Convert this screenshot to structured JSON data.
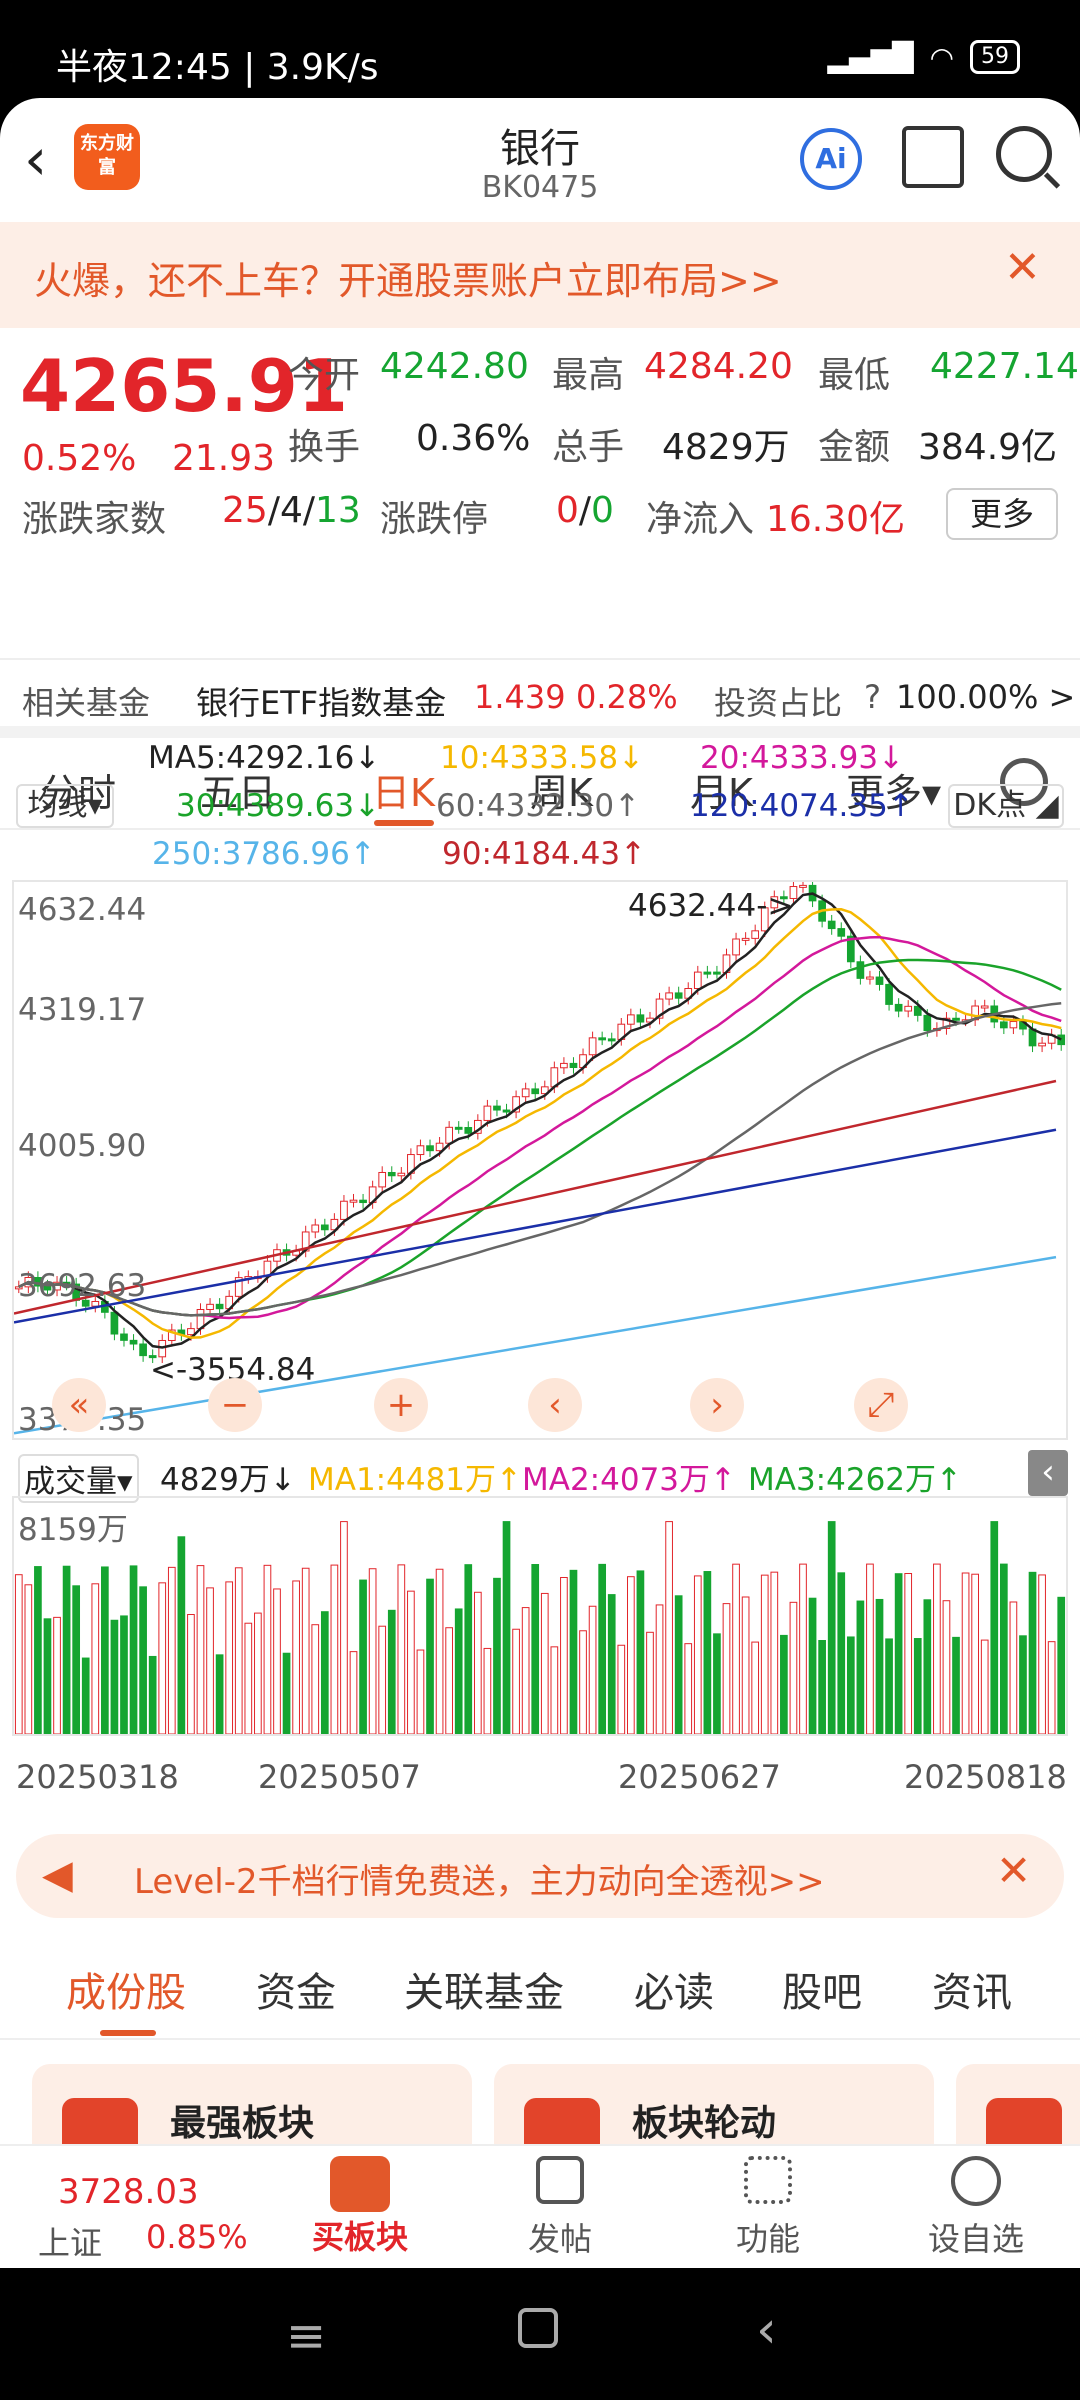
{
  "status": {
    "time": "半夜12:45 | 3.9K/s",
    "battery": "59",
    "net": "HD"
  },
  "nav": {
    "title": "银行",
    "code": "BK0475",
    "logo": "东方财富",
    "ai": "Ai"
  },
  "promo": {
    "text": "火爆，还不上车？开通股票账户立即布局>>"
  },
  "quote": {
    "price": "4265.91",
    "pct": "0.52%",
    "chg": "21.93",
    "open_label": "今开",
    "open": "4242.80",
    "high_label": "最高",
    "high": "4284.20",
    "low_label": "最低",
    "low": "4227.14",
    "turnover_label": "换手",
    "turnover": "0.36%",
    "vol_label": "总手",
    "vol": "4829万",
    "amt_label": "金额",
    "amt": "384.9亿",
    "count_label": "涨跌家数",
    "count_up": "25",
    "count_flat": "/4/",
    "count_down": "13",
    "limit_label": "涨跌停",
    "limit_up": "0",
    "limit_sep": "/",
    "limit_down": "0",
    "inflow_label": "净流入",
    "inflow": "16.30亿",
    "more": "更多"
  },
  "fund": {
    "label": "相关基金",
    "name": "银行ETF指数基金",
    "price": "1.439",
    "pct": "0.28%",
    "ratio_label": "投资占比",
    "ratio": "100.00% >"
  },
  "tabs": [
    "分时",
    "五日",
    "日K",
    "周K",
    "月K",
    "更多▾"
  ],
  "ma": {
    "toggle": "均线▾",
    "dk": "DK点 ◢",
    "ma5": "MA5:4292.16↓",
    "ma10": "10:4333.58↓",
    "ma20": "20:4333.93↓",
    "ma30": "30:4389.63↓",
    "ma60": "60:4332.30↑",
    "ma120": "120:4074.35↑",
    "ma250": "250:3786.96↑",
    "ma90": "90:4184.43↑"
  },
  "colors": {
    "ma5": "#222222",
    "ma10": "#f5b800",
    "ma20": "#d3189b",
    "ma30": "#1aa32a",
    "ma60": "#666666",
    "ma120": "#1b2fa8",
    "ma250": "#56b4e9",
    "ma90": "#c0272d"
  },
  "chart_labels": {
    "y_top": "4632.44",
    "y2": "4319.17",
    "y3": "4005.90",
    "y4": "3692.63",
    "y_bottom": "3379.35",
    "hi_note": "4632.44->",
    "lo_note": "<-3554.84"
  },
  "vol": {
    "label": "成交量▾",
    "cur": "4829万↓",
    "ma1": "MA1:4481万↑",
    "ma2": "MA2:4073万↑",
    "ma3": "MA3:4262万↑",
    "ymax": "8159万"
  },
  "dates": [
    "20250318",
    "20250507",
    "20250627",
    "20250818"
  ],
  "chart_data": {
    "type": "candlestick",
    "y_axis_ticks": [
      4632.44,
      4319.17,
      4005.9,
      3692.63,
      3379.35
    ],
    "y_range": [
      3379.35,
      4632.44
    ],
    "dates_shown": [
      "20250318",
      "20250507",
      "20250627",
      "20250818"
    ],
    "annotations": [
      {
        "text": "4632.44->",
        "value": 4632.44
      },
      {
        "text": "<-3554.84",
        "value": 3554.84
      }
    ],
    "volume_y_label": "8159万"
  },
  "l2": {
    "text": "Level-2千档行情免费送，主力动向全透视>>"
  },
  "subtabs": [
    "成份股",
    "资金",
    "关联基金",
    "必读",
    "股吧",
    "资讯"
  ],
  "cards": [
    {
      "title": "最强板块"
    },
    {
      "title": "板块轮动"
    }
  ],
  "bottom": {
    "index": "3728.03",
    "index_name": "上证",
    "index_pct": "0.85%",
    "buy": "买板块",
    "post": "发帖",
    "func": "功能",
    "watch": "设自选"
  }
}
